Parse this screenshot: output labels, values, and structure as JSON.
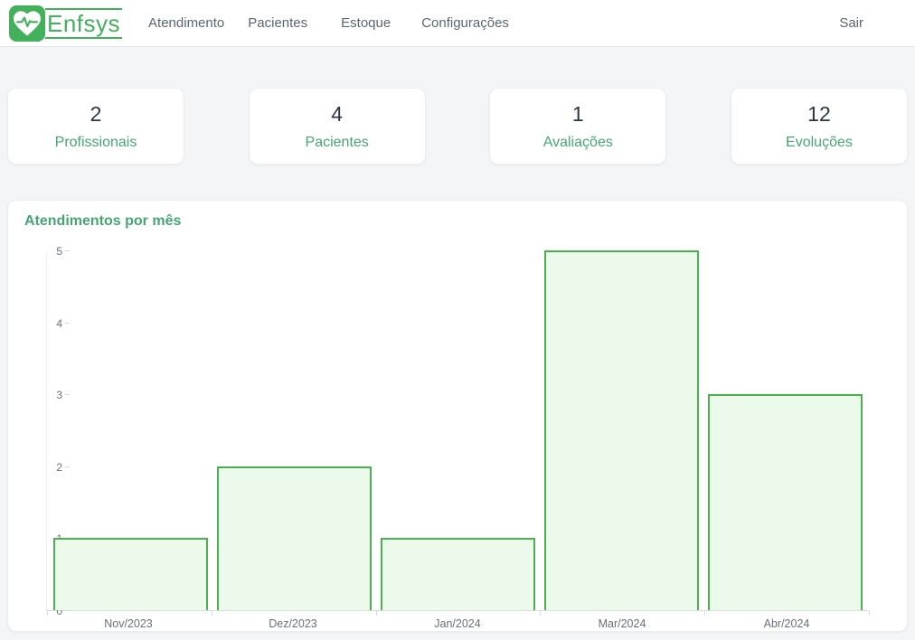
{
  "navbar": {
    "brand": "Enfsys",
    "items": [
      {
        "label": "Atendimento"
      },
      {
        "label": "Pacientes"
      },
      {
        "label": "Estoque"
      },
      {
        "label": "Configurações"
      }
    ],
    "logout_label": "Sair"
  },
  "stats": [
    {
      "value": "2",
      "label": "Profissionais"
    },
    {
      "value": "4",
      "label": "Pacientes"
    },
    {
      "value": "1",
      "label": "Avaliações"
    },
    {
      "value": "12",
      "label": "Evoluções"
    }
  ],
  "chart_data": {
    "type": "bar",
    "title": "Atendimentos por mês",
    "categories": [
      "Nov/2023",
      "Dez/2023",
      "Jan/2024",
      "Mar/2024",
      "Abr/2024"
    ],
    "values": [
      1,
      2,
      1,
      5,
      3
    ],
    "xlabel": "",
    "ylabel": "",
    "ylim": [
      0,
      5
    ],
    "yticks": [
      0,
      1,
      2,
      3,
      4,
      5
    ],
    "grid": false,
    "legend_position": "none",
    "bar_fill": "#ebfaeb",
    "bar_border": "#4caf50"
  },
  "colors": {
    "brand_green": "#43b05c",
    "accent_green": "#45a672",
    "stat_number": "#2d3446",
    "nav_text": "#5b6570",
    "page_background": "#f4f5f7"
  }
}
